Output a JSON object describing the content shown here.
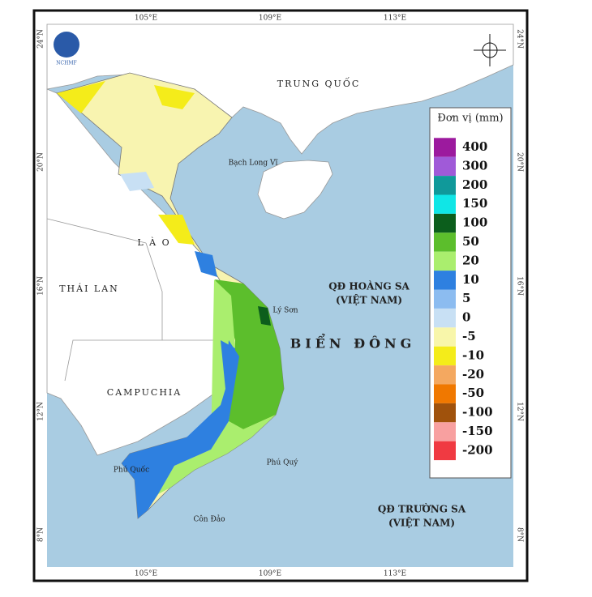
{
  "logo": {
    "label": "NCHMF"
  },
  "axes": {
    "longitudes": [
      "105°E",
      "109°E",
      "113°E"
    ],
    "latitudes": [
      "24°N",
      "20°N",
      "16°N",
      "12°N",
      "8°N"
    ]
  },
  "places": {
    "china": "TRUNG QUỐC",
    "bach_long_vi": "Bạch Long Vĩ",
    "laos": "L À O",
    "thailand": "THÁI LAN",
    "hoang_sa": [
      "QĐ HOÀNG SA",
      "(VIỆT NAM)"
    ],
    "ly_son": "Lý Sơn",
    "bien_dong": "BIỂN ĐÔNG",
    "cambodia": "CAMPUCHIA",
    "phu_quoc": "Phú Quốc",
    "phu_quy": "Phú Quý",
    "con_dao": "Côn Đảo",
    "truong_sa": [
      "QĐ TRƯỜNG SA",
      "(VIỆT NAM)"
    ]
  },
  "legend": {
    "title": "Đơn vị (mm)",
    "items": [
      {
        "label": 400,
        "color": "#9c1a9e"
      },
      {
        "label": 300,
        "color": "#a05ad8"
      },
      {
        "label": 200,
        "color": "#10999a"
      },
      {
        "label": 150,
        "color": "#10e6e6"
      },
      {
        "label": 100,
        "color": "#0c5e1c"
      },
      {
        "label": 50,
        "color": "#5cbe2c"
      },
      {
        "label": 20,
        "color": "#aaee6e"
      },
      {
        "label": 10,
        "color": "#2e80e0"
      },
      {
        "label": 5,
        "color": "#8cbcf0"
      },
      {
        "label": 0,
        "color": "#c8e0f4"
      },
      {
        "label": -5,
        "color": "#f8f6aa"
      },
      {
        "label": -10,
        "color": "#f4ec1a"
      },
      {
        "label": -20,
        "color": "#f4a860"
      },
      {
        "label": -50,
        "color": "#f07800"
      },
      {
        "label": -100,
        "color": "#a0520c"
      },
      {
        "label": -150,
        "color": "#f8a0a0"
      },
      {
        "label": -200,
        "color": "#f03a42"
      }
    ]
  }
}
